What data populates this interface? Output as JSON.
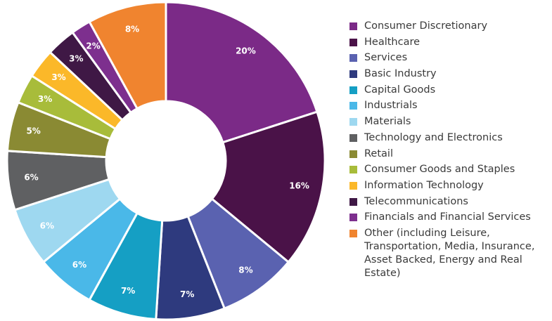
{
  "chart_data": {
    "type": "donut",
    "categories": [
      "Consumer Discretionary",
      "Healthcare",
      "Services",
      "Basic Industry",
      "Capital Goods",
      "Industrials",
      "Materials",
      "Technology and Electronics",
      "Retail",
      "Consumer Goods and Staples",
      "Information Technology",
      "Telecommunications",
      "Financials and Financial Services",
      "Other (including Leisure, Transportation, Media, Insurance, Asset Backed, Energy and Real Estate)"
    ],
    "values": [
      20,
      16,
      8,
      7,
      7,
      6,
      6,
      6,
      5,
      3,
      3,
      3,
      2,
      8
    ],
    "value_labels": [
      "20%",
      "16%",
      "8%",
      "7%",
      "7%",
      "6%",
      "6%",
      "6%",
      "5%",
      "3%",
      "3%",
      "3%",
      "2%",
      "8%"
    ],
    "colors": [
      "#7b2a87",
      "#4a1248",
      "#5a62b0",
      "#2e3a7e",
      "#159fc4",
      "#4ab8e8",
      "#9ed8f0",
      "#5f6062",
      "#8a8a33",
      "#a8bc3a",
      "#fbb829",
      "#3f1845",
      "#7d2f8e",
      "#f0842f"
    ],
    "legend": "right"
  }
}
